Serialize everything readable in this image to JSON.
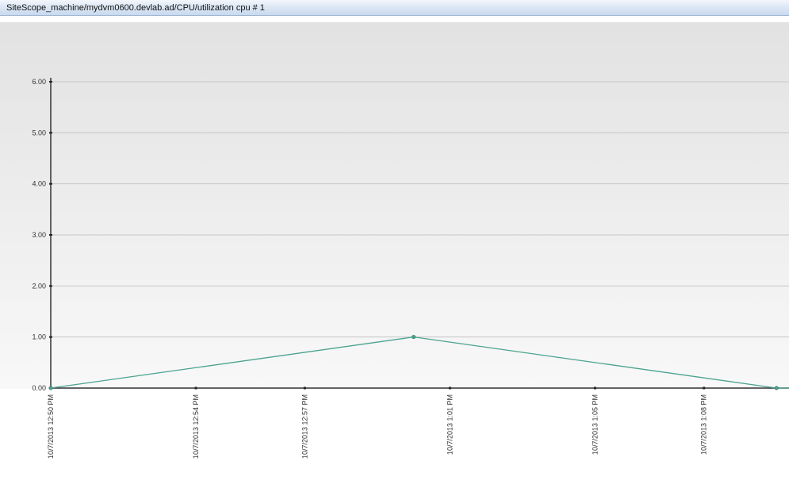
{
  "window": {
    "title": "SiteScope_machine/mydvm0600.devlab.ad/CPU/utilization cpu # 1"
  },
  "chart_data": {
    "type": "line",
    "title": "",
    "xlabel": "",
    "ylabel": "",
    "ylim": [
      0,
      6
    ],
    "y_ticks": [
      {
        "value": 0,
        "label": "0.00"
      },
      {
        "value": 1,
        "label": "1.00"
      },
      {
        "value": 2,
        "label": "2.00"
      },
      {
        "value": 3,
        "label": "3.00"
      },
      {
        "value": 4,
        "label": "4.00"
      },
      {
        "value": 5,
        "label": "5.00"
      },
      {
        "value": 6,
        "label": "6.00"
      }
    ],
    "x_range": [
      "10/7/2013 12:50 PM",
      "10/7/2013 1:11 PM"
    ],
    "x_ticks": [
      {
        "time": "10/7/2013 12:50 PM",
        "label": "10/7/2013 12:50 PM"
      },
      {
        "time": "10/7/2013 12:54 PM",
        "label": "10/7/2013 12:54 PM"
      },
      {
        "time": "10/7/2013 12:57 PM",
        "label": "10/7/2013 12:57 PM"
      },
      {
        "time": "10/7/2013 1:01 PM",
        "label": "10/7/2013 1:01 PM"
      },
      {
        "time": "10/7/2013 1:05 PM",
        "label": "10/7/2013 1:05 PM"
      },
      {
        "time": "10/7/2013 1:08 PM",
        "label": "10/7/2013 1:08 PM"
      }
    ],
    "series": [
      {
        "color": "#4aa38e",
        "points": [
          {
            "x": "10/7/2013 12:50 PM",
            "y": 0
          },
          {
            "x": "10/7/2013 1:00 PM",
            "y": 1
          },
          {
            "x": "10/7/2013 1:10 PM",
            "y": 0
          }
        ]
      }
    ],
    "grid": true,
    "legend": "none"
  }
}
